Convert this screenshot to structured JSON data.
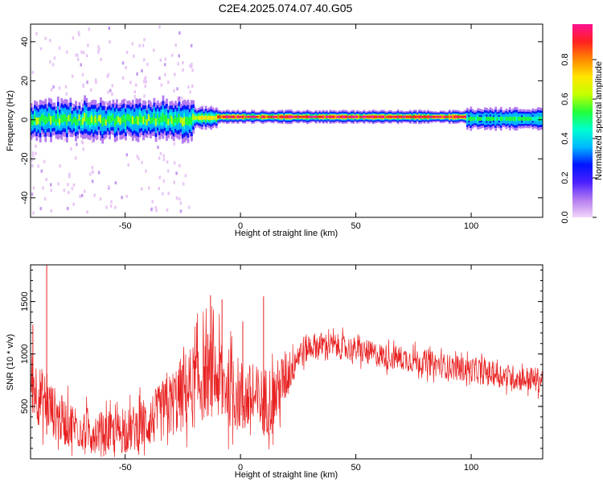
{
  "figure_title": "C2E4.2025.074.07.40.G05",
  "chart_data": [
    {
      "type": "heatmap",
      "xlabel": "Height of straight line (km)",
      "ylabel": "Frequency (Hz)",
      "xlim": [
        -91,
        131
      ],
      "ylim": [
        -50,
        49
      ],
      "xticks": [
        -50,
        0,
        50,
        100
      ],
      "yticks": [
        -40,
        -20,
        0,
        20,
        40
      ],
      "colorbar": {
        "label": "Normalized spectral amplitude",
        "range": [
          0,
          0.98
        ],
        "ticks": [
          "0.0",
          "0.2",
          "0.4",
          "0.6",
          "0.8"
        ],
        "colormap": [
          "#f2d6f8",
          "#b47cf0",
          "#4a1fff",
          "#0015ff",
          "#00b8ff",
          "#00ffd0",
          "#22ff3a",
          "#c4ff00",
          "#ffe600",
          "#ff8800",
          "#ff2020",
          "#ff1090"
        ]
      },
      "band_segments": [
        {
          "x_range": [
            -91,
            -20
          ],
          "description": "broadband noisy region",
          "center_hz": 0,
          "half_width_hz": 9,
          "peak_amplitude": 0.6
        },
        {
          "x_range": [
            -20,
            -10
          ],
          "center_hz": 1,
          "half_width_hz": 5,
          "peak_amplitude": 0.75
        },
        {
          "x_range": [
            -10,
            98
          ],
          "center_hz": 1.5,
          "half_width_hz": 3,
          "peak_amplitude": 0.95
        },
        {
          "x_range": [
            98,
            131
          ],
          "center_hz": 0.5,
          "half_width_hz": 5,
          "peak_amplitude": 0.55
        }
      ]
    },
    {
      "type": "line",
      "xlabel": "Height of straight line (km)",
      "ylabel": "SNR (10 * v/v)",
      "xlim": [
        -91,
        131
      ],
      "ylim": [
        0,
        1850
      ],
      "xticks": [
        -50,
        0,
        50,
        100
      ],
      "yticks": [
        500,
        1000,
        1500
      ],
      "series": [
        {
          "color": "#e82020",
          "x": [
            -91,
            -88,
            -85,
            -82,
            -80,
            -78,
            -75,
            -70,
            -65,
            -60,
            -55,
            -50,
            -45,
            -40,
            -35,
            -30,
            -25,
            -20,
            -15,
            -12,
            -10,
            -5,
            0,
            5,
            10,
            15,
            20,
            25,
            30,
            35,
            40,
            45,
            50,
            55,
            60,
            65,
            70,
            75,
            80,
            85,
            90,
            95,
            100,
            105,
            110,
            115,
            120,
            125,
            131
          ],
          "values": [
            800,
            620,
            560,
            480,
            420,
            380,
            340,
            300,
            270,
            250,
            240,
            260,
            300,
            350,
            430,
            520,
            620,
            700,
            800,
            820,
            760,
            680,
            600,
            560,
            540,
            600,
            800,
            1000,
            1070,
            1090,
            1080,
            1060,
            1040,
            1010,
            990,
            970,
            960,
            940,
            920,
            900,
            880,
            860,
            850,
            830,
            810,
            790,
            770,
            760,
            750
          ],
          "noise_amplitude": [
            300,
            300,
            280,
            260,
            250,
            240,
            230,
            220,
            210,
            200,
            200,
            210,
            230,
            250,
            280,
            320,
            380,
            420,
            420,
            420,
            400,
            380,
            360,
            340,
            340,
            320,
            260,
            160,
            130,
            120,
            120,
            120,
            120,
            120,
            120,
            120,
            120,
            120,
            120,
            120,
            120,
            120,
            120,
            120,
            120,
            120,
            120,
            120,
            120
          ],
          "spikes": [
            {
              "x": -84,
              "y": 1850
            },
            {
              "x": -90,
              "y": 1280
            },
            {
              "x": -13,
              "y": 1560
            },
            {
              "x": -8,
              "y": 1520
            },
            {
              "x": 10,
              "y": 1550
            },
            {
              "x": 1,
              "y": 1310
            }
          ]
        }
      ]
    }
  ]
}
